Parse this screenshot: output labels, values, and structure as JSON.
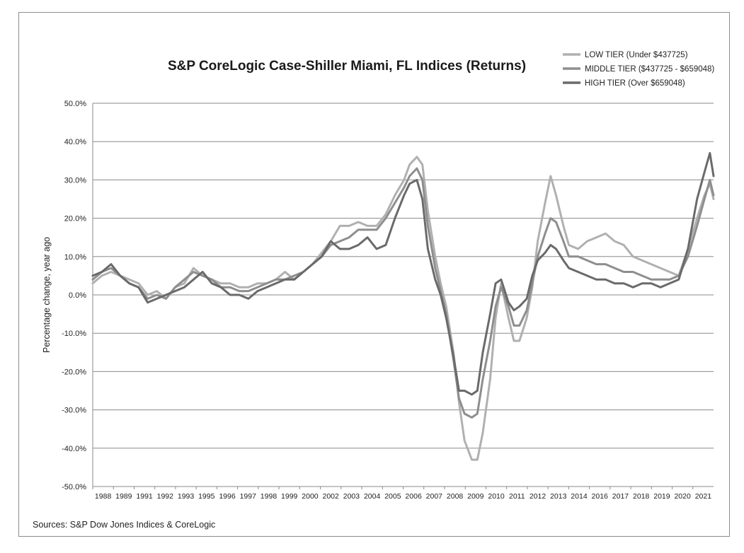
{
  "source_note": "Sources: S&P Dow Jones Indices & CoreLogic",
  "colors": {
    "low": "#b0b0b0",
    "middle": "#8e8e8e",
    "high": "#6a6a6a",
    "grid": "#8a8a8a",
    "text": "#222222"
  },
  "chart_data": {
    "type": "line",
    "title": "S&P CoreLogic Case-Shiller Miami, FL Indices (Returns)",
    "ylabel": "Percentage change, year ago",
    "xlabel": "",
    "ylim": [
      -50,
      50
    ],
    "xlim": [
      1988,
      2021.9
    ],
    "yticks": [
      50,
      40,
      30,
      20,
      10,
      0,
      -10,
      -20,
      -30,
      -40,
      -50
    ],
    "ytick_labels": [
      "50.0%",
      "40.0%",
      "30.0%",
      "20.0%",
      "10.0%",
      "0.0%",
      "-10.0%",
      "-20.0%",
      "-30.0%",
      "-40.0%",
      "-50.0%"
    ],
    "xtick_labels": [
      "1988",
      "1989",
      "1991",
      "1992",
      "1993",
      "1995",
      "1996",
      "1997",
      "1998",
      "1999",
      "2000",
      "2002",
      "2003",
      "2004",
      "2005",
      "2006",
      "2007",
      "2008",
      "2009",
      "2010",
      "2011",
      "2012",
      "2013",
      "2014",
      "2016",
      "2017",
      "2018",
      "2019",
      "2020",
      "2021"
    ],
    "grid": true,
    "legend_position": "top-right",
    "series": [
      {
        "name": "LOW TIER (Under $437725)",
        "x": [
          1988.0,
          1988.5,
          1989.0,
          1989.5,
          1990.0,
          1990.5,
          1991.0,
          1991.5,
          1992.0,
          1992.5,
          1993.0,
          1993.5,
          1994.0,
          1994.5,
          1995.0,
          1995.5,
          1996.0,
          1996.5,
          1997.0,
          1997.5,
          1998.0,
          1998.5,
          1999.0,
          1999.5,
          2000.0,
          2000.5,
          2001.0,
          2001.5,
          2002.0,
          2002.5,
          2003.0,
          2003.5,
          2004.0,
          2004.5,
          2005.0,
          2005.3,
          2005.7,
          2006.0,
          2006.3,
          2006.7,
          2007.0,
          2007.3,
          2007.7,
          2008.0,
          2008.3,
          2008.7,
          2009.0,
          2009.3,
          2009.7,
          2010.0,
          2010.3,
          2010.7,
          2011.0,
          2011.3,
          2011.7,
          2012.0,
          2012.3,
          2012.7,
          2013.0,
          2013.3,
          2013.7,
          2014.0,
          2014.5,
          2015.0,
          2015.5,
          2016.0,
          2016.5,
          2017.0,
          2017.5,
          2018.0,
          2018.5,
          2019.0,
          2019.5,
          2020.0,
          2020.5,
          2021.0,
          2021.4,
          2021.7,
          2021.9
        ],
        "values": [
          3,
          5,
          6,
          5,
          4,
          3,
          0,
          1,
          -1,
          2,
          3,
          7,
          5,
          4,
          3,
          3,
          2,
          2,
          3,
          3,
          4,
          6,
          4,
          6,
          8,
          11,
          14,
          18,
          18,
          19,
          18,
          18,
          21,
          26,
          30,
          34,
          36,
          34,
          22,
          10,
          3,
          -3,
          -15,
          -28,
          -38,
          -43,
          -43,
          -36,
          -22,
          -6,
          3,
          -6,
          -12,
          -12,
          -6,
          2,
          14,
          24,
          31,
          26,
          18,
          13,
          12,
          14,
          15,
          16,
          14,
          13,
          10,
          9,
          8,
          7,
          6,
          5,
          12,
          20,
          26,
          29,
          25
        ]
      },
      {
        "name": "MIDDLE TIER ($437725 - $659048)",
        "x": [
          1988.0,
          1988.5,
          1989.0,
          1989.5,
          1990.0,
          1990.5,
          1991.0,
          1991.5,
          1992.0,
          1992.5,
          1993.0,
          1993.5,
          1994.0,
          1994.5,
          1995.0,
          1995.5,
          1996.0,
          1996.5,
          1997.0,
          1997.5,
          1998.0,
          1998.5,
          1999.0,
          1999.5,
          2000.0,
          2000.5,
          2001.0,
          2001.5,
          2002.0,
          2002.5,
          2003.0,
          2003.5,
          2004.0,
          2004.5,
          2005.0,
          2005.3,
          2005.7,
          2006.0,
          2006.3,
          2006.7,
          2007.0,
          2007.3,
          2007.7,
          2008.0,
          2008.3,
          2008.7,
          2009.0,
          2009.3,
          2009.7,
          2010.0,
          2010.3,
          2010.7,
          2011.0,
          2011.3,
          2011.7,
          2012.0,
          2012.3,
          2012.7,
          2013.0,
          2013.3,
          2013.7,
          2014.0,
          2014.5,
          2015.0,
          2015.5,
          2016.0,
          2016.5,
          2017.0,
          2017.5,
          2018.0,
          2018.5,
          2019.0,
          2019.5,
          2020.0,
          2020.5,
          2021.0,
          2021.4,
          2021.7,
          2021.9
        ],
        "values": [
          4,
          6,
          7,
          5,
          3,
          2,
          -1,
          0,
          -1,
          2,
          4,
          6,
          5,
          4,
          2,
          2,
          1,
          1,
          2,
          3,
          4,
          4,
          5,
          6,
          8,
          10,
          13,
          14,
          15,
          17,
          17,
          17,
          20,
          24,
          28,
          31,
          33,
          30,
          18,
          7,
          1,
          -5,
          -17,
          -27,
          -31,
          -32,
          -31,
          -22,
          -12,
          -3,
          2,
          -3,
          -8,
          -8,
          -4,
          3,
          10,
          16,
          20,
          19,
          14,
          10,
          10,
          9,
          8,
          8,
          7,
          6,
          6,
          5,
          4,
          4,
          4,
          5,
          10,
          18,
          25,
          30,
          26
        ]
      },
      {
        "name": "HIGH TIER (Over $659048)",
        "x": [
          1988.0,
          1988.5,
          1989.0,
          1989.5,
          1990.0,
          1990.5,
          1991.0,
          1991.5,
          1992.0,
          1992.5,
          1993.0,
          1993.5,
          1994.0,
          1994.5,
          1995.0,
          1995.5,
          1996.0,
          1996.5,
          1997.0,
          1997.5,
          1998.0,
          1998.5,
          1999.0,
          1999.5,
          2000.0,
          2000.5,
          2001.0,
          2001.5,
          2002.0,
          2002.5,
          2003.0,
          2003.5,
          2004.0,
          2004.5,
          2005.0,
          2005.3,
          2005.7,
          2006.0,
          2006.3,
          2006.7,
          2007.0,
          2007.3,
          2007.7,
          2008.0,
          2008.3,
          2008.7,
          2009.0,
          2009.3,
          2009.7,
          2010.0,
          2010.3,
          2010.7,
          2011.0,
          2011.3,
          2011.7,
          2012.0,
          2012.3,
          2012.7,
          2013.0,
          2013.3,
          2013.7,
          2014.0,
          2014.5,
          2015.0,
          2015.5,
          2016.0,
          2016.5,
          2017.0,
          2017.5,
          2018.0,
          2018.5,
          2019.0,
          2019.5,
          2020.0,
          2020.5,
          2021.0,
          2021.4,
          2021.7,
          2021.9
        ],
        "values": [
          5,
          6,
          8,
          5,
          3,
          2,
          -2,
          -1,
          0,
          1,
          2,
          4,
          6,
          3,
          2,
          0,
          0,
          -1,
          1,
          2,
          3,
          4,
          4,
          6,
          8,
          10,
          14,
          12,
          12,
          13,
          15,
          12,
          13,
          20,
          26,
          29,
          30,
          25,
          12,
          4,
          0,
          -6,
          -16,
          -25,
          -25,
          -26,
          -25,
          -15,
          -5,
          3,
          4,
          -2,
          -4,
          -3,
          -1,
          5,
          9,
          11,
          13,
          12,
          9,
          7,
          6,
          5,
          4,
          4,
          3,
          3,
          2,
          3,
          3,
          2,
          3,
          4,
          12,
          25,
          32,
          37,
          31
        ]
      }
    ]
  }
}
